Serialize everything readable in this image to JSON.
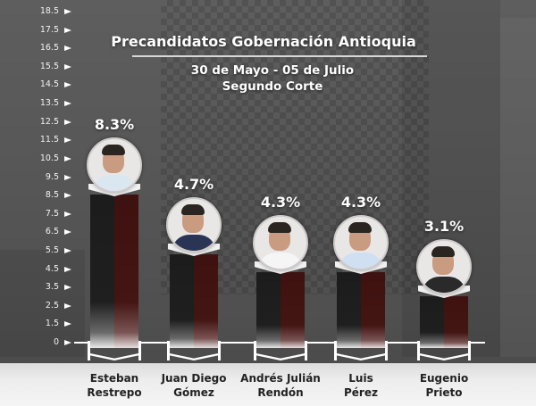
{
  "chart_data": {
    "type": "bar",
    "title": "Precandidatos Gobernación Antioquia",
    "subtitle_lines": [
      "30 de Mayo - 05 de Julio",
      "Segundo Corte"
    ],
    "categories": [
      "Esteban Restrepo",
      "Juan Diego Gómez",
      "Andrés Julián Rendón",
      "Luis Pérez",
      "Eugenio Prieto"
    ],
    "values": [
      8.3,
      4.7,
      4.3,
      4.3,
      3.1
    ],
    "value_labels": [
      "8.3%",
      "4.7%",
      "4.3%",
      "4.3%",
      "3.1%"
    ],
    "xlabel": "",
    "ylabel": "",
    "ylim": [
      0,
      18.5
    ],
    "y_ticks": [
      "18.5",
      "17.5",
      "16.5",
      "15.5",
      "14.5",
      "13.5",
      "12.5",
      "11.5",
      "10.5",
      "9.5",
      "8.5",
      "7.5",
      "6.5",
      "5.5",
      "4.5",
      "3.5",
      "2.5",
      "1.5",
      "0"
    ],
    "grid": false,
    "legend": null
  },
  "header": {
    "title": "Precandidatos Gobernación Antioquia",
    "date_range": "30 de Mayo - 05 de Julio",
    "cut": "Segundo Corte"
  },
  "candidates": [
    {
      "first": "Esteban",
      "last": "Restrepo",
      "pct": "8.3%",
      "value": 8.3,
      "body_color": "#dbe7f0"
    },
    {
      "first": "Juan Diego",
      "last": "Gómez",
      "pct": "4.7%",
      "value": 4.7,
      "body_color": "#2a3556"
    },
    {
      "first": "Andrés Julián",
      "last": "Rendón",
      "pct": "4.3%",
      "value": 4.3,
      "body_color": "#f5f5f5"
    },
    {
      "first": "Luis",
      "last": "Pérez",
      "pct": "4.3%",
      "value": 4.3,
      "body_color": "#cfe0f2"
    },
    {
      "first": "Eugenio",
      "last": "Prieto",
      "pct": "3.1%",
      "value": 3.1,
      "body_color": "#2a2a2a"
    }
  ],
  "colors": {
    "bar_left": "#1c1c1c",
    "bar_right": "#421412",
    "background": "#585858",
    "footer": "#ececec",
    "text_light": "#ffffff",
    "text_dark": "#222222"
  }
}
